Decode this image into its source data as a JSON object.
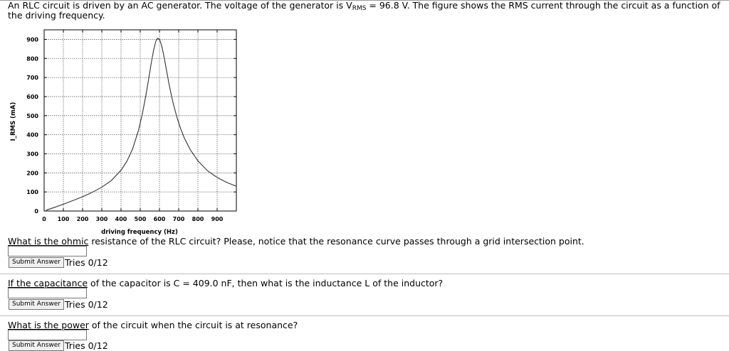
{
  "intro": {
    "part1": "An RLC circuit is driven by an AC generator. The voltage of the generator is V",
    "sub": "RMS",
    "part2": " = 96.8 V. The figure shows the RMS current through the circuit as a function of the driving frequency."
  },
  "chart_data": {
    "type": "line",
    "title": "",
    "xlabel": "driving frequency (Hz)",
    "ylabel": "I_RMS (mA)",
    "xlim": [
      0,
      1000
    ],
    "ylim": [
      0,
      950
    ],
    "grid": true,
    "x_ticks": [
      0,
      100,
      200,
      300,
      400,
      500,
      600,
      700,
      800,
      900
    ],
    "y_ticks": [
      0,
      100,
      200,
      300,
      400,
      500,
      600,
      700,
      800,
      900
    ],
    "series": [
      {
        "x": [
          10,
          50,
          100,
          150,
          200,
          250,
          300,
          350,
          400,
          430,
          460,
          490,
          510,
          530,
          550,
          560,
          570,
          580,
          590,
          600,
          610,
          620,
          630,
          640,
          650,
          670,
          690,
          710,
          730,
          760,
          800,
          850,
          900,
          950,
          1000
        ],
        "y": [
          4,
          18,
          36,
          55,
          75,
          98,
          125,
          160,
          214,
          260,
          325,
          420,
          505,
          610,
          730,
          792,
          846,
          887,
          906,
          900,
          872,
          828,
          775,
          719,
          664,
          570,
          494,
          432,
          381,
          322,
          263,
          211,
          176,
          150,
          130
        ]
      }
    ]
  },
  "questions": [
    {
      "lead": "What is the ohmic",
      "rest": " resistance of the RLC circuit? Please, notice that the resonance curve passes through a grid intersection point.",
      "submit_label": "Submit Answer",
      "tries": "Tries 0/12"
    },
    {
      "lead": "If the capacitance",
      "rest": " of the capacitor is C = 409.0 nF, then what is the inductance L of the inductor?",
      "submit_label": "Submit Answer",
      "tries": "Tries 0/12"
    },
    {
      "lead": "What is the power",
      "rest": " of the circuit when the circuit is at resonance?",
      "submit_label": "Submit Answer",
      "tries": "Tries 0/12"
    }
  ]
}
